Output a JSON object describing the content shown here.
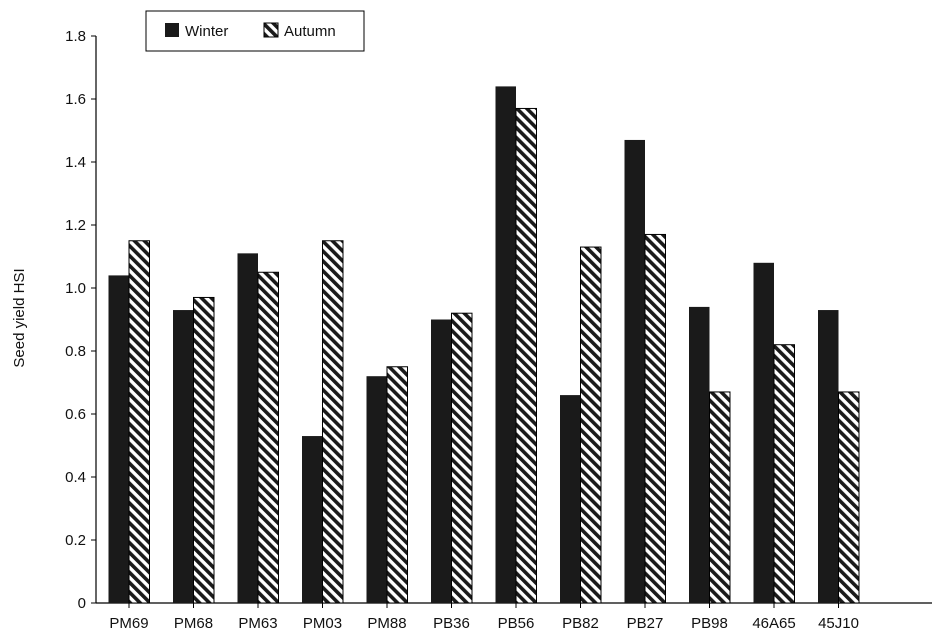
{
  "chart_data": {
    "type": "bar",
    "title": "",
    "xlabel": "",
    "ylabel": "Seed yield HSI",
    "ylim": [
      0,
      1.8
    ],
    "yticks": [
      "0",
      "0.2",
      "0.4",
      "0.6",
      "0.8",
      "1.0",
      "1.2",
      "1.4",
      "1.6",
      "1.8"
    ],
    "categories": [
      "PM69",
      "PM68",
      "PM63",
      "PM03",
      "PM88",
      "PB36",
      "PB56",
      "PB82",
      "PB27",
      "PB98",
      "46A65",
      "45J10"
    ],
    "series": [
      {
        "name": "Winter",
        "values": [
          1.04,
          0.93,
          1.11,
          0.53,
          0.72,
          0.9,
          1.64,
          0.66,
          1.47,
          0.94,
          1.08,
          0.93
        ],
        "color": "#1a1a1a",
        "pattern": "solid"
      },
      {
        "name": "Autumn",
        "values": [
          1.15,
          0.97,
          1.05,
          1.15,
          0.75,
          0.92,
          1.57,
          1.13,
          1.17,
          0.67,
          0.82,
          0.67
        ],
        "color": "#1a1a1a",
        "pattern": "diagonal-stripes"
      }
    ],
    "grid": false,
    "legend_position": "top-left"
  }
}
